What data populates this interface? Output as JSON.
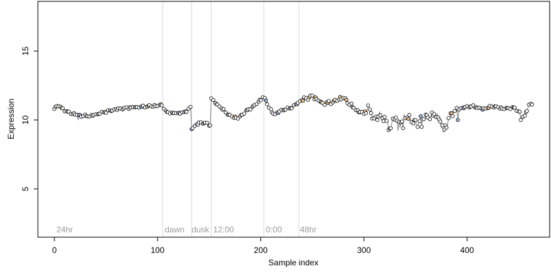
{
  "chart_data": {
    "type": "scatter",
    "title": "",
    "xlabel": "Sample index",
    "ylabel": "Expression",
    "xlim": [
      -16,
      480
    ],
    "ylim": [
      1.5,
      18.6
    ],
    "x_ticks": [
      0,
      100,
      200,
      300,
      400
    ],
    "y_ticks": [
      5,
      10,
      15
    ],
    "grid": false,
    "legend": "none",
    "vlines": [
      105,
      133,
      152,
      203,
      237
    ],
    "annotations": [
      {
        "x": 2,
        "label": "24hr"
      },
      {
        "x": 107,
        "label": "dawn"
      },
      {
        "x": 133,
        "label": "dusk"
      },
      {
        "x": 154,
        "label": "12:00"
      },
      {
        "x": 205,
        "label": "0:00"
      },
      {
        "x": 238,
        "label": "48hr"
      }
    ],
    "colors": {
      "line": "#888888",
      "point_stroke": "#000000",
      "vline": "#d9d9d9",
      "fill_a": "#f3c38a",
      "fill_b": "#9dbbe6",
      "fill_default": "#ffffff",
      "annotation": "#9a9a9a"
    },
    "series_anchors": [
      [
        0,
        10.8
      ],
      [
        3,
        11.1
      ],
      [
        8,
        10.8
      ],
      [
        15,
        10.5
      ],
      [
        25,
        10.3
      ],
      [
        35,
        10.3
      ],
      [
        45,
        10.5
      ],
      [
        60,
        10.8
      ],
      [
        75,
        10.9
      ],
      [
        90,
        11.0
      ],
      [
        100,
        11.0
      ],
      [
        104,
        11.1
      ],
      [
        108,
        10.6
      ],
      [
        115,
        10.5
      ],
      [
        125,
        10.5
      ],
      [
        132,
        10.9
      ],
      [
        133,
        9.4
      ],
      [
        140,
        9.8
      ],
      [
        146,
        9.8
      ],
      [
        151,
        9.6
      ],
      [
        152,
        11.6
      ],
      [
        155,
        11.3
      ],
      [
        160,
        11.0
      ],
      [
        170,
        10.3
      ],
      [
        178,
        10.1
      ],
      [
        185,
        10.6
      ],
      [
        195,
        11.1
      ],
      [
        203,
        11.7
      ],
      [
        208,
        10.9
      ],
      [
        213,
        10.4
      ],
      [
        220,
        10.7
      ],
      [
        230,
        10.9
      ],
      [
        240,
        11.5
      ],
      [
        250,
        11.7
      ],
      [
        260,
        11.2
      ],
      [
        270,
        11.3
      ],
      [
        280,
        11.6
      ],
      [
        287,
        11.1
      ],
      [
        295,
        10.6
      ],
      [
        300,
        10.5
      ],
      [
        305,
        10.9
      ],
      [
        310,
        10.0
      ],
      [
        315,
        10.4
      ],
      [
        320,
        10.1
      ],
      [
        325,
        9.4
      ],
      [
        330,
        10.2
      ],
      [
        335,
        9.7
      ],
      [
        340,
        10.3
      ],
      [
        350,
        9.8
      ],
      [
        360,
        10.2
      ],
      [
        370,
        10.4
      ],
      [
        378,
        9.3
      ],
      [
        385,
        10.5
      ],
      [
        395,
        10.9
      ],
      [
        405,
        11.0
      ],
      [
        415,
        10.8
      ],
      [
        425,
        11.0
      ],
      [
        435,
        10.8
      ],
      [
        445,
        10.9
      ],
      [
        452,
        10.5
      ],
      [
        455,
        10.1
      ],
      [
        460,
        11.1
      ],
      [
        463,
        11.1
      ]
    ],
    "outliers": [
      [
        23,
        10.0
      ],
      [
        326,
        9.4
      ],
      [
        333,
        9.2
      ],
      [
        338,
        9.4
      ],
      [
        352,
        9.5
      ],
      [
        356,
        9.5
      ],
      [
        377,
        9.1
      ],
      [
        391,
        10.0
      ],
      [
        452,
        10.0
      ]
    ],
    "fill_ranges_a": [
      [
        100,
        107
      ],
      [
        240,
        290
      ],
      [
        418,
        430
      ]
    ],
    "fill_ranges_b": [
      [
        107,
        133
      ],
      [
        213,
        240
      ],
      [
        388,
        400
      ]
    ]
  }
}
